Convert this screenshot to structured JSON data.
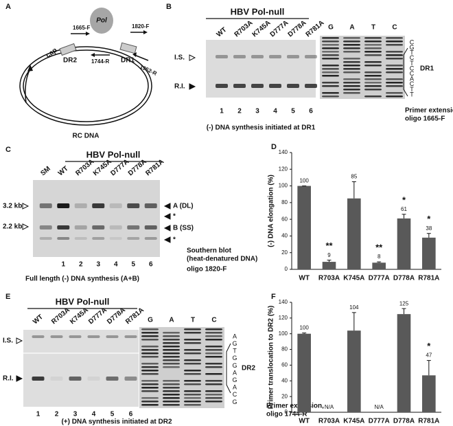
{
  "panel_a": {
    "label": "A",
    "pol": "Pol",
    "primers": [
      "1665-F",
      "1820-F",
      "1744-R",
      "1952-R"
    ],
    "cap": "cap",
    "dr2": "DR2",
    "dr1": "DR1",
    "molecule": "RC DNA"
  },
  "panel_b": {
    "label": "B",
    "group": "HBV Pol-null",
    "lanes": [
      "WT",
      "R703A",
      "K745A",
      "D777A",
      "D778A",
      "R781A"
    ],
    "sequencing_lanes": [
      "G",
      "A",
      "T",
      "C"
    ],
    "markers": [
      "I.S.",
      "R.I."
    ],
    "sequence": [
      "C",
      "G",
      "T",
      "C",
      "T",
      "C",
      "C",
      "A",
      "C",
      "T",
      "T"
    ],
    "region": "DR1",
    "lane_numbers": [
      "1",
      "2",
      "3",
      "4",
      "5",
      "6"
    ],
    "note": [
      "Primer extension,",
      "oligo 1665-F"
    ],
    "caption": "(-) DNA synthesis initiated at DR1"
  },
  "panel_c": {
    "label": "C",
    "group": "HBV Pol-null",
    "lanes": [
      "SM",
      "WT",
      "R703A",
      "K745A",
      "D777A",
      "D778A",
      "R781A"
    ],
    "size_markers": [
      "3.2 kb",
      "2.2 kb"
    ],
    "bands": [
      "A (DL)",
      "*",
      "B (SS)",
      "*"
    ],
    "note": [
      "Southern blot",
      "(heat-denatured DNA)",
      "oligo 1820-F"
    ],
    "lane_numbers": [
      "1",
      "2",
      "3",
      "4",
      "5",
      "6"
    ],
    "caption": "Full length (-) DNA synthesis (A+B)"
  },
  "panel_e": {
    "label": "E",
    "group": "HBV Pol-null",
    "lanes": [
      "WT",
      "R703A",
      "K745A",
      "D777A",
      "D778A",
      "R781A"
    ],
    "sequencing_lanes": [
      "G",
      "A",
      "T",
      "C"
    ],
    "markers": [
      "I.S.",
      "R.I."
    ],
    "sequence": [
      "A",
      "G",
      "T",
      "G",
      "G",
      "A",
      "G",
      "A",
      "C",
      "G"
    ],
    "region": "DR2",
    "lane_numbers": [
      "1",
      "2",
      "3",
      "4",
      "5",
      "6"
    ],
    "note": [
      "Primer extension,",
      "oligo 1744-R"
    ],
    "caption": "(+) DNA synthesis initiated at DR2"
  },
  "chart_data": [
    {
      "type": "bar",
      "panel": "D",
      "ylabel": "(-) DNA elongation (%)",
      "categories": [
        "WT",
        "R703A",
        "K745A",
        "D777A",
        "D778A",
        "R781A"
      ],
      "values": [
        100,
        9,
        85,
        8,
        61,
        38
      ],
      "errors": [
        0,
        2,
        20,
        1,
        5,
        5
      ],
      "annotations": [
        null,
        "**",
        null,
        "**",
        "*",
        "*"
      ],
      "color": "#595959",
      "ylim": [
        0,
        140
      ],
      "yticks": [
        0,
        20,
        40,
        60,
        80,
        100,
        120,
        140
      ]
    },
    {
      "type": "bar",
      "panel": "F",
      "ylabel": "Primer translocation to DR2 (%)",
      "categories": [
        "WT",
        "R703A",
        "K745A",
        "D777A",
        "D778A",
        "R781A"
      ],
      "values": [
        100,
        null,
        104,
        null,
        125,
        47
      ],
      "value_labels": [
        "100",
        "N/A",
        "104",
        "N/A",
        "125",
        "47"
      ],
      "errors": [
        1,
        null,
        23,
        null,
        7,
        19
      ],
      "annotations": [
        null,
        null,
        null,
        null,
        null,
        "*"
      ],
      "color": "#595959",
      "ylim": [
        0,
        140
      ],
      "yticks": [
        0,
        20,
        40,
        60,
        80,
        100,
        120,
        140
      ]
    }
  ]
}
